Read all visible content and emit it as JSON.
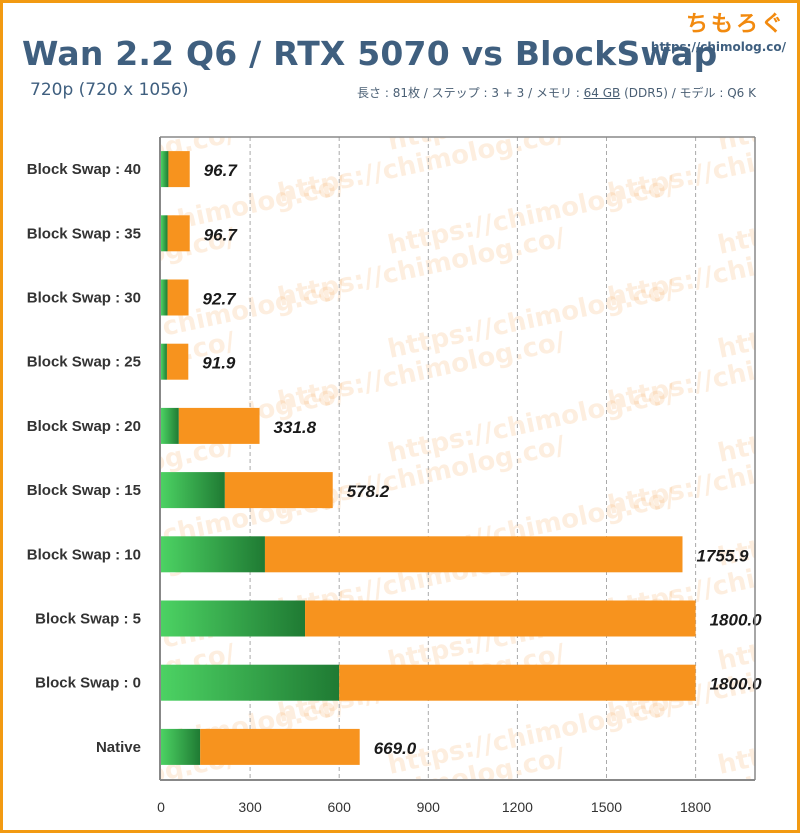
{
  "header": {
    "title": "Wan 2.2 Q6 / RTX 5070 vs BlockSwap",
    "subtitle": "720p (720 x 1056)",
    "specs_pre": "長さ : 81枚 / ステップ : 3 + 3 / メモリ : ",
    "specs_mem": "64 GB",
    "specs_post": " (DDR5) / モデル : Q6 K"
  },
  "logo": {
    "main": "ちもろぐ",
    "url": "https://chimolog.co/"
  },
  "watermark": "https://chimolog.co/",
  "colors": {
    "segment_green_light": "#4cd263",
    "segment_green_dark": "#1f7a33",
    "segment_orange": "#f7931e",
    "axis": "#888888",
    "grid": "#aaaaaa",
    "frame": "#f29a11",
    "title": "#3f5f7f"
  },
  "chart_data": {
    "type": "bar",
    "orientation": "horizontal",
    "stacked": true,
    "categories": [
      "Block Swap : 40",
      "Block Swap : 35",
      "Block Swap : 30",
      "Block Swap : 25",
      "Block Swap : 20",
      "Block Swap : 15",
      "Block Swap : 10",
      "Block Swap : 5",
      "Block Swap : 0",
      "Native"
    ],
    "series": [
      {
        "color": "#3dbf55",
        "values": [
          25,
          22,
          22,
          20,
          60,
          215,
          350,
          485,
          600,
          132
        ]
      },
      {
        "color": "#f7931e",
        "values": [
          71.7,
          74.7,
          70.7,
          71.9,
          271.8,
          363.2,
          1405.9,
          1315,
          1200,
          537
        ]
      }
    ],
    "totals": [
      96.7,
      96.7,
      92.7,
      91.9,
      331.8,
      578.2,
      1755.9,
      1800.0,
      1800.0,
      669.0
    ],
    "total_labels": [
      "96.7",
      "96.7",
      "92.7",
      "91.9",
      "331.8",
      "578.2",
      "1755.9",
      "1800.0",
      "1800.0",
      "669.0"
    ],
    "xlim": [
      0,
      2000
    ],
    "xticks": [
      0,
      300,
      600,
      900,
      1200,
      1500,
      1800
    ],
    "xtick_labels": [
      "0",
      "300",
      "600",
      "900",
      "1200",
      "1500",
      "1800"
    ],
    "grid": "vertical dashed",
    "legend": "none"
  }
}
